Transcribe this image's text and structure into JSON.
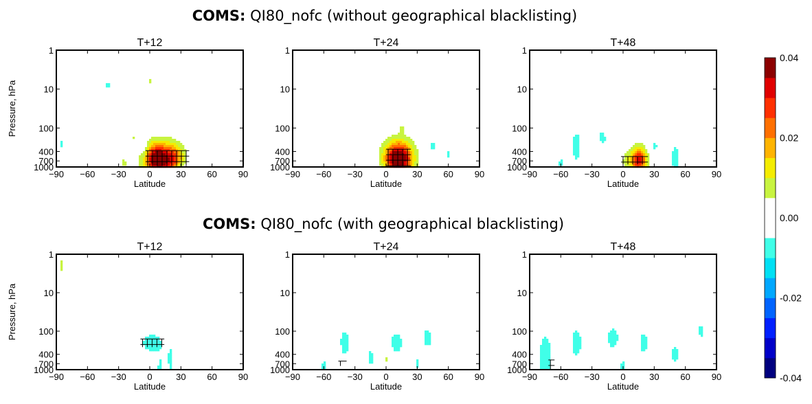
{
  "figure": {
    "row_titles": [
      {
        "bold": "COMS:",
        "rest": " QI80_nofc (without geographical blacklisting)"
      },
      {
        "bold": "COMS:",
        "rest": " QI80_nofc (with geographical blacklisting)"
      }
    ]
  },
  "chart_data": [
    {
      "type": "heatmap",
      "title": "T+12",
      "row": 0,
      "xlabel": "Latitude",
      "ylabel": "Pressure, hPa",
      "xlim": [
        -90,
        90
      ],
      "xticks": [
        -90,
        -60,
        -30,
        0,
        30,
        60,
        90
      ],
      "ylim": [
        1,
        1000
      ],
      "yscale": "log",
      "yinverted": true,
      "yticks": [
        1,
        10,
        100,
        400,
        700,
        1000
      ],
      "blobs": [
        {
          "lat": 12,
          "p": 650,
          "wlat": 16,
          "wp": 0.42,
          "v": 0.037
        },
        {
          "lat": 4,
          "p": 600,
          "wlat": 8,
          "wp": 0.35,
          "v": 0.012
        },
        {
          "lat": 25,
          "p": 550,
          "wlat": 8,
          "wp": 0.3,
          "v": 0.008
        },
        {
          "lat": -5,
          "p": 350,
          "wlat": 4,
          "wp": 0.25,
          "v": -0.006
        },
        {
          "lat": -25,
          "p": 800,
          "wlat": 4,
          "wp": 0.18,
          "v": 0.006
        },
        {
          "lat": -40,
          "p": 8,
          "wlat": 4,
          "wp": 0.15,
          "v": -0.006
        },
        {
          "lat": 0,
          "p": 6,
          "wlat": 3,
          "wp": 0.12,
          "v": 0.006
        },
        {
          "lat": -85,
          "p": 250,
          "wlat": 3,
          "wp": 0.2,
          "v": -0.006
        },
        {
          "lat": 60,
          "p": 30,
          "wlat": 3,
          "wp": 0.15,
          "v": -0.005
        },
        {
          "lat": 30,
          "p": 1000,
          "wlat": 6,
          "wp": 0.12,
          "v": -0.006
        },
        {
          "lat": 80,
          "p": 150,
          "wlat": 3,
          "wp": 0.2,
          "v": -0.005
        },
        {
          "lat": 45,
          "p": 120,
          "wlat": 3,
          "wp": 0.12,
          "v": 0.005
        },
        {
          "lat": -15,
          "p": 180,
          "wlat": 3,
          "wp": 0.1,
          "v": 0.005
        }
      ],
      "significant": {
        "lat_min": -2,
        "lat_max": 36,
        "p_min": 380,
        "p_max": 950
      }
    },
    {
      "type": "heatmap",
      "title": "T+24",
      "row": 0,
      "xlabel": "Latitude",
      "ylabel": "",
      "xlim": [
        -90,
        90
      ],
      "xticks": [
        -90,
        -60,
        -30,
        0,
        30,
        60,
        90
      ],
      "ylim": [
        1,
        1000
      ],
      "yscale": "log",
      "yinverted": true,
      "yticks": [
        1,
        10,
        100,
        400,
        700,
        1000
      ],
      "blobs": [
        {
          "lat": 12,
          "p": 650,
          "wlat": 13,
          "wp": 0.4,
          "v": 0.034
        },
        {
          "lat": 12,
          "p": 500,
          "wlat": 14,
          "wp": 0.45,
          "v": 0.012
        },
        {
          "lat": 45,
          "p": 300,
          "wlat": 4,
          "wp": 0.3,
          "v": -0.006
        },
        {
          "lat": 60,
          "p": 450,
          "wlat": 4,
          "wp": 0.2,
          "v": -0.006
        },
        {
          "lat": -10,
          "p": 800,
          "wlat": 4,
          "wp": 0.15,
          "v": -0.006
        },
        {
          "lat": 15,
          "p": 100,
          "wlat": 3,
          "wp": 0.15,
          "v": 0.005
        },
        {
          "lat": -50,
          "p": 300,
          "wlat": 3,
          "wp": 0.15,
          "v": 0.005
        },
        {
          "lat": 80,
          "p": 600,
          "wlat": 3,
          "wp": 0.25,
          "v": 0.005
        },
        {
          "lat": 50,
          "p": 700,
          "wlat": 4,
          "wp": 0.2,
          "v": 0.005
        },
        {
          "lat": -70,
          "p": 80,
          "wlat": 3,
          "wp": 0.15,
          "v": -0.005
        }
      ],
      "significant": {
        "lat_min": 2,
        "lat_max": 22,
        "p_min": 350,
        "p_max": 960
      }
    },
    {
      "type": "heatmap",
      "title": "T+48",
      "row": 0,
      "xlabel": "Latitude",
      "ylabel": "",
      "xlim": [
        -90,
        90
      ],
      "xticks": [
        -90,
        -60,
        -30,
        0,
        30,
        60,
        90
      ],
      "ylim": [
        1,
        1000
      ],
      "yscale": "log",
      "yinverted": true,
      "yticks": [
        1,
        10,
        100,
        400,
        700,
        1000
      ],
      "blobs": [
        {
          "lat": 15,
          "p": 700,
          "wlat": 7,
          "wp": 0.28,
          "v": 0.024
        },
        {
          "lat": 15,
          "p": 600,
          "wlat": 10,
          "wp": 0.38,
          "v": 0.01
        },
        {
          "lat": 3,
          "p": 700,
          "wlat": 4,
          "wp": 0.2,
          "v": 0.006
        },
        {
          "lat": -45,
          "p": 300,
          "wlat": 6,
          "wp": 0.55,
          "v": -0.007
        },
        {
          "lat": 50,
          "p": 600,
          "wlat": 5,
          "wp": 0.5,
          "v": -0.007
        },
        {
          "lat": -20,
          "p": 200,
          "wlat": 5,
          "wp": 0.35,
          "v": -0.007
        },
        {
          "lat": 30,
          "p": 300,
          "wlat": 6,
          "wp": 0.3,
          "v": -0.006
        },
        {
          "lat": -60,
          "p": 800,
          "wlat": 5,
          "wp": 0.2,
          "v": -0.006
        },
        {
          "lat": -70,
          "p": 80,
          "wlat": 4,
          "wp": 0.25,
          "v": -0.005
        },
        {
          "lat": 60,
          "p": 70,
          "wlat": 4,
          "wp": 0.2,
          "v": -0.005
        },
        {
          "lat": 75,
          "p": 300,
          "wlat": 3,
          "wp": 0.25,
          "v": -0.005
        },
        {
          "lat": -20,
          "p": 350,
          "wlat": 3,
          "wp": 0.18,
          "v": 0.005
        },
        {
          "lat": -78,
          "p": 300,
          "wlat": 3,
          "wp": 0.2,
          "v": 0.005
        },
        {
          "lat": 35,
          "p": 12,
          "wlat": 3,
          "wp": 0.12,
          "v": -0.005
        }
      ],
      "significant": {
        "lat_min": 0,
        "lat_max": 22,
        "p_min": 540,
        "p_max": 860
      }
    },
    {
      "type": "heatmap",
      "title": "T+12",
      "row": 1,
      "xlabel": "Latitude",
      "ylabel": "Pressure, hPa",
      "xlim": [
        -90,
        90
      ],
      "xticks": [
        -90,
        -60,
        -30,
        0,
        30,
        60,
        90
      ],
      "ylim": [
        1,
        1000
      ],
      "yscale": "log",
      "yinverted": true,
      "yticks": [
        1,
        10,
        100,
        400,
        700,
        1000
      ],
      "blobs": [
        {
          "lat": 2,
          "p": 200,
          "wlat": 12,
          "wp": 0.3,
          "v": -0.008
        },
        {
          "lat": 20,
          "p": 600,
          "wlat": 4,
          "wp": 0.6,
          "v": -0.006
        },
        {
          "lat": 10,
          "p": 900,
          "wlat": 4,
          "wp": 0.4,
          "v": -0.006
        },
        {
          "lat": -45,
          "p": 100,
          "wlat": 4,
          "wp": 0.25,
          "v": 0.005
        },
        {
          "lat": -85,
          "p": 2,
          "wlat": 3,
          "wp": 0.3,
          "v": 0.006
        },
        {
          "lat": -70,
          "p": 4,
          "wlat": 3,
          "wp": 0.15,
          "v": 0.005
        },
        {
          "lat": -88,
          "p": 200,
          "wlat": 3,
          "wp": 0.2,
          "v": 0.005
        },
        {
          "lat": -20,
          "p": 400,
          "wlat": 3,
          "wp": 0.2,
          "v": 0.005
        },
        {
          "lat": 70,
          "p": 20,
          "wlat": 4,
          "wp": 0.15,
          "v": -0.005
        },
        {
          "lat": 40,
          "p": 2,
          "wlat": 3,
          "wp": 0.12,
          "v": -0.005
        },
        {
          "lat": 85,
          "p": 2,
          "wlat": 3,
          "wp": 0.15,
          "v": 0.005
        },
        {
          "lat": -30,
          "p": 900,
          "wlat": 3,
          "wp": 0.15,
          "v": 0.005
        }
      ],
      "significant": {
        "lat_min": -7,
        "lat_max": 12,
        "p_min": 160,
        "p_max": 260
      }
    },
    {
      "type": "heatmap",
      "title": "T+24",
      "row": 1,
      "xlabel": "Latitude",
      "ylabel": "",
      "xlim": [
        -90,
        90
      ],
      "xticks": [
        -90,
        -60,
        -30,
        0,
        30,
        60,
        90
      ],
      "ylim": [
        1,
        1000
      ],
      "yscale": "log",
      "yinverted": true,
      "yticks": [
        1,
        10,
        100,
        400,
        700,
        1000
      ],
      "blobs": [
        {
          "lat": -40,
          "p": 200,
          "wlat": 6,
          "wp": 0.5,
          "v": -0.007
        },
        {
          "lat": 10,
          "p": 200,
          "wlat": 8,
          "wp": 0.4,
          "v": -0.007
        },
        {
          "lat": 40,
          "p": 150,
          "wlat": 6,
          "wp": 0.35,
          "v": -0.007
        },
        {
          "lat": -15,
          "p": 500,
          "wlat": 5,
          "wp": 0.4,
          "v": -0.006
        },
        {
          "lat": 30,
          "p": 700,
          "wlat": 4,
          "wp": 0.3,
          "v": -0.006
        },
        {
          "lat": -60,
          "p": 800,
          "wlat": 4,
          "wp": 0.25,
          "v": -0.006
        },
        {
          "lat": 70,
          "p": 500,
          "wlat": 4,
          "wp": 0.3,
          "v": -0.005
        },
        {
          "lat": 0,
          "p": 500,
          "wlat": 3,
          "wp": 0.25,
          "v": 0.006
        },
        {
          "lat": -85,
          "p": 200,
          "wlat": 3,
          "wp": 0.2,
          "v": 0.005
        },
        {
          "lat": 65,
          "p": 20,
          "wlat": 3,
          "wp": 0.15,
          "v": -0.005
        },
        {
          "lat": 20,
          "p": 40,
          "wlat": 3,
          "wp": 0.12,
          "v": -0.005
        }
      ],
      "significant": {
        "lat_min": -44,
        "lat_max": -40,
        "p_min": 600,
        "p_max": 800
      }
    },
    {
      "type": "heatmap",
      "title": "T+48",
      "row": 1,
      "xlabel": "Latitude",
      "ylabel": "",
      "xlim": [
        -90,
        90
      ],
      "xticks": [
        -90,
        -60,
        -30,
        0,
        30,
        60,
        90
      ],
      "ylim": [
        1,
        1000
      ],
      "yscale": "log",
      "yinverted": true,
      "yticks": [
        1,
        10,
        100,
        400,
        700,
        1000
      ],
      "blobs": [
        {
          "lat": -75,
          "p": 500,
          "wlat": 8,
          "wp": 0.8,
          "v": -0.008
        },
        {
          "lat": -45,
          "p": 200,
          "wlat": 7,
          "wp": 0.55,
          "v": -0.007
        },
        {
          "lat": -10,
          "p": 150,
          "wlat": 8,
          "wp": 0.4,
          "v": -0.007
        },
        {
          "lat": 20,
          "p": 200,
          "wlat": 6,
          "wp": 0.4,
          "v": -0.007
        },
        {
          "lat": 50,
          "p": 400,
          "wlat": 6,
          "wp": 0.45,
          "v": -0.006
        },
        {
          "lat": 75,
          "p": 100,
          "wlat": 4,
          "wp": 0.35,
          "v": -0.006
        },
        {
          "lat": 0,
          "p": 800,
          "wlat": 5,
          "wp": 0.25,
          "v": -0.006
        },
        {
          "lat": -60,
          "p": 10,
          "wlat": 5,
          "wp": 0.3,
          "v": -0.005
        },
        {
          "lat": 80,
          "p": 2,
          "wlat": 3,
          "wp": 0.15,
          "v": 0.005
        },
        {
          "lat": -85,
          "p": 3,
          "wlat": 3,
          "wp": 0.2,
          "v": 0.005
        },
        {
          "lat": 30,
          "p": 800,
          "wlat": 3,
          "wp": 0.2,
          "v": 0.005
        }
      ],
      "significant": {
        "lat_min": -70,
        "lat_max": -68,
        "p_min": 560,
        "p_max": 1000
      }
    }
  ],
  "colorbar": {
    "vmin": -0.04,
    "vmax": 0.04,
    "ticks": [
      "0.04",
      "0.02",
      "0.00",
      "-0.02",
      "-0.04"
    ],
    "tick_values": [
      0.04,
      0.02,
      0,
      -0.02,
      -0.04
    ],
    "colors": [
      "#00007f",
      "#0000c8",
      "#0020ff",
      "#0064ff",
      "#00a8ff",
      "#00e0f4",
      "#40ffe8",
      "#ffffff",
      "#ffffff",
      "#c8f440",
      "#f4ec00",
      "#ffb400",
      "#ff7000",
      "#ff3000",
      "#e00000",
      "#8c0000"
    ]
  },
  "colors": {
    "axis": "#000000",
    "significance": "#000000"
  }
}
